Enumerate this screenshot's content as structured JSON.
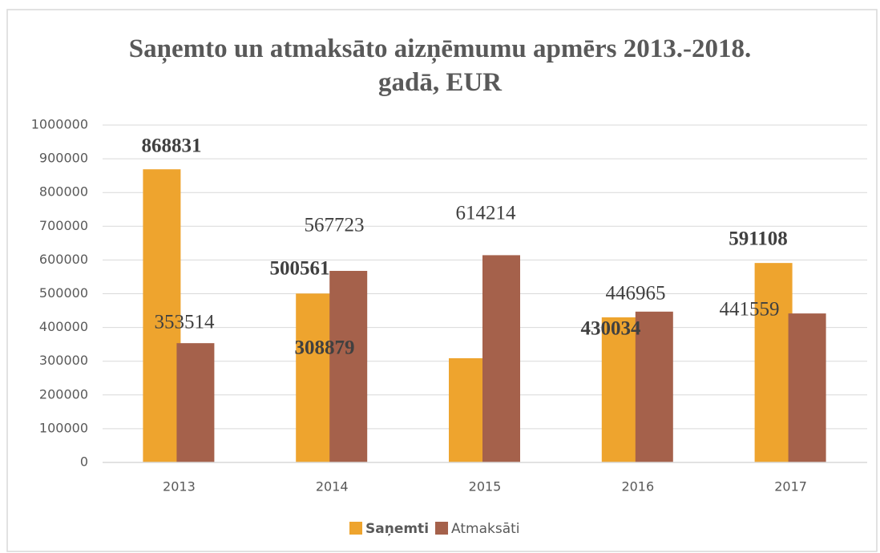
{
  "chart_data": {
    "type": "bar",
    "title": "Saņemto un atmaksāto aizņēmumu apmērs 2013.-2018. gadā, EUR",
    "categories": [
      "2013",
      "2014",
      "2015",
      "2016",
      "2017"
    ],
    "series": [
      {
        "name": "Saņemti",
        "color": "#eea42e",
        "values": [
          868831,
          500561,
          308879,
          430034,
          591108
        ]
      },
      {
        "name": "Atmaksāti",
        "color": "#a5614b",
        "values": [
          353514,
          567723,
          614214,
          446965,
          441559
        ]
      }
    ],
    "ylim": [
      0,
      1000000
    ],
    "yticks": [
      0,
      100000,
      200000,
      300000,
      400000,
      500000,
      600000,
      700000,
      800000,
      900000,
      1000000
    ],
    "grid": true,
    "legend": "bottom"
  }
}
